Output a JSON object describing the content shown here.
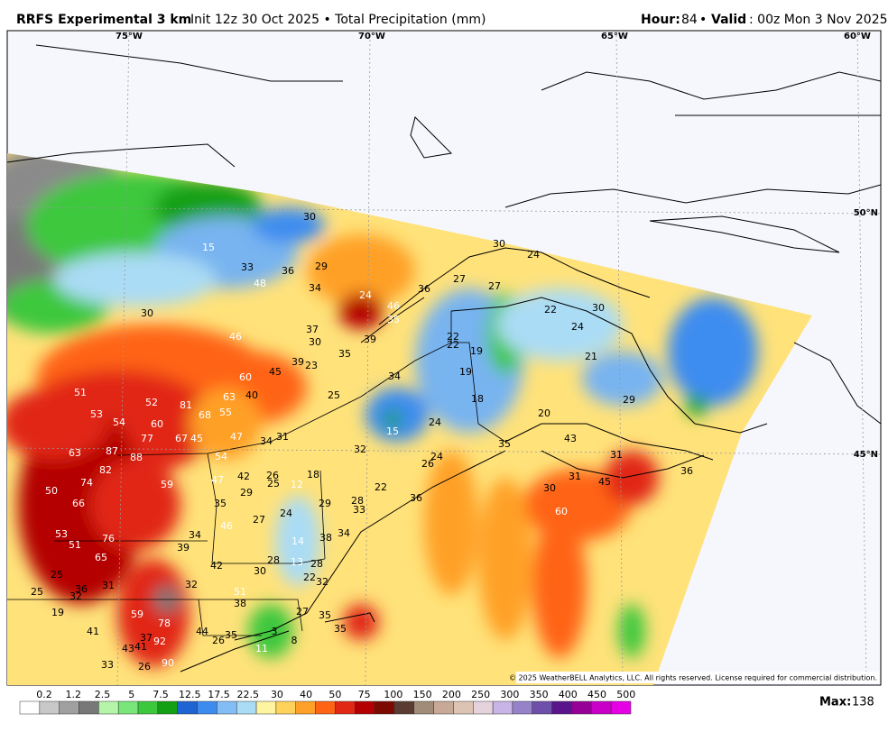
{
  "header": {
    "model": "RRFS Experimental 3 km",
    "info": "Init 12z 30 Oct 2025 • Total Precipitation (mm)",
    "hour_label": "Hour:",
    "hour": "84",
    "sep": "•",
    "valid_label": "Valid",
    "valid": ": 00z Mon 3 Nov 2025"
  },
  "map": {
    "lon_labels": [
      "75°W",
      "70°W",
      "65°W",
      "60°W"
    ],
    "lat_labels": [
      "50°N",
      "45°N"
    ],
    "values": [
      30,
      15,
      33,
      36,
      29,
      48,
      34,
      24,
      36,
      27,
      27,
      30,
      24,
      30,
      46,
      37,
      30,
      39,
      35,
      46,
      35,
      22,
      22,
      19,
      19,
      34,
      25,
      60,
      45,
      39,
      23,
      51,
      52,
      81,
      63,
      40,
      53,
      54,
      60,
      68,
      55,
      18,
      24,
      15,
      20,
      29,
      21,
      24,
      22,
      30,
      77,
      67,
      45,
      47,
      34,
      31,
      63,
      87,
      88,
      54,
      32,
      35,
      43,
      31,
      82,
      42,
      47,
      26,
      25,
      18,
      12,
      24,
      26,
      74,
      59,
      29,
      22,
      36,
      30,
      31,
      45,
      36,
      50,
      66,
      35,
      28,
      33,
      29,
      24,
      27,
      46,
      53,
      76,
      34,
      39,
      38,
      34,
      14,
      60,
      51,
      65,
      28,
      42,
      13,
      28,
      30,
      25,
      22,
      32,
      31,
      32,
      25,
      32,
      36,
      51,
      38,
      19,
      59,
      78,
      27,
      35,
      41,
      44,
      35,
      26,
      3,
      8,
      35,
      92,
      37,
      43,
      41,
      11,
      33,
      26,
      90
    ],
    "copyright": "© 2025 WeatherBELL Analytics, LLC. All rights reserved. License required for commercial distribution."
  },
  "colorbar": {
    "ticks": [
      0.2,
      1.2,
      2.5,
      5,
      7.5,
      12.5,
      17.5,
      22.5,
      30,
      40,
      50,
      75,
      100,
      150,
      200,
      250,
      300,
      350,
      400,
      450,
      500
    ],
    "colors": [
      "#ffffff",
      "#c8c8c8",
      "#a0a0a0",
      "#787878",
      "#b4f5aa",
      "#78e678",
      "#3cc83c",
      "#14a014",
      "#1e64d2",
      "#3c8cf0",
      "#82bef5",
      "#aadcf5",
      "#fff5a0",
      "#ffd25a",
      "#ffa028",
      "#ff6414",
      "#e12814",
      "#b40000",
      "#7d0a00",
      "#5a3c32",
      "#a08c78",
      "#c8a896",
      "#dcc3b4",
      "#e6d2dc",
      "#c8b4e6",
      "#9682c8",
      "#6e50aa",
      "#5a148c",
      "#960096",
      "#c800c8",
      "#e600e6"
    ],
    "max_label": "Max:",
    "max": 138
  }
}
